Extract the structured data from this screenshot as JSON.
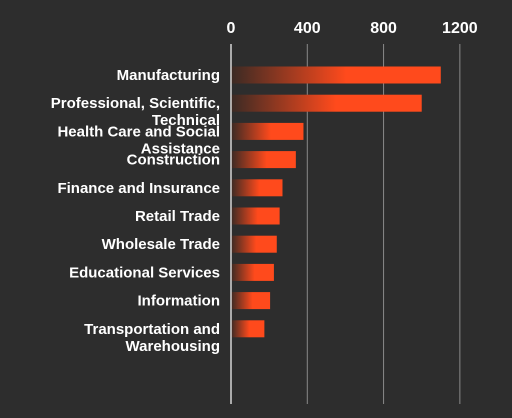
{
  "chart_data": {
    "type": "bar",
    "orientation": "horizontal",
    "title": "",
    "xlabel": "",
    "ylabel": "",
    "xlim": [
      0,
      1400
    ],
    "ticks": [
      0,
      400,
      800,
      1200
    ],
    "tick_labels": [
      "0",
      "400",
      "800",
      "1200"
    ],
    "grid": true,
    "categories": [
      [
        "Manufacturing"
      ],
      [
        "Professional, Scientific,",
        "Technical"
      ],
      [
        "Health Care and Social",
        "Assistance"
      ],
      [
        "Construction"
      ],
      [
        "Finance and Insurance"
      ],
      [
        "Retail Trade"
      ],
      [
        "Wholesale Trade"
      ],
      [
        "Educational Services"
      ],
      [
        "Information"
      ],
      [
        "Transportation and",
        "Warehousing"
      ]
    ],
    "values": [
      1100,
      1000,
      380,
      340,
      270,
      255,
      240,
      225,
      205,
      175
    ],
    "colors": {
      "bar": "#ff4a1c",
      "bar_fade": "#3a2a24",
      "background": "#2d2d2d",
      "text": "#ffffff",
      "grid": "#8a8a8a"
    }
  }
}
